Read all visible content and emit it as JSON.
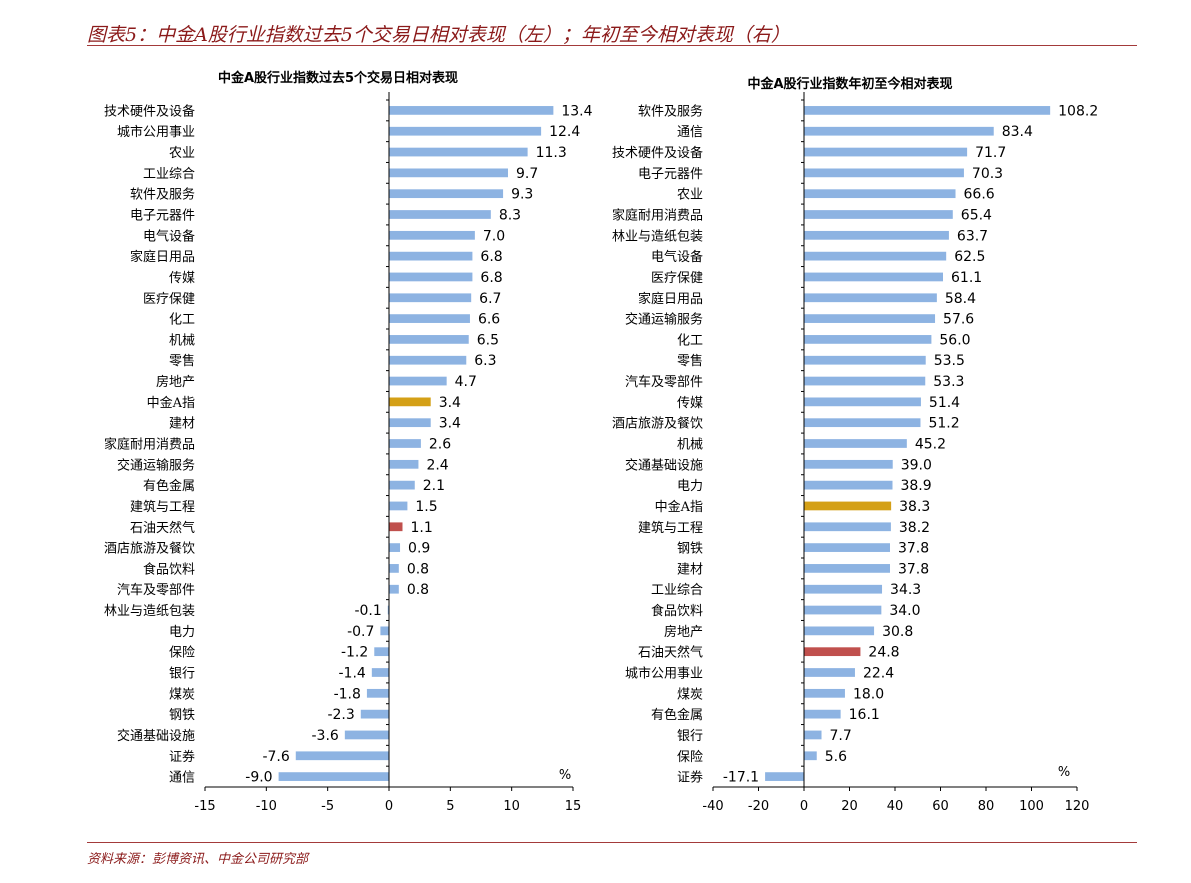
{
  "figure": {
    "title": "图表5：中金A股行业指数过去5个交易日相对表现（左）；年初至今相对表现（右）",
    "source": "资料来源：彭博资讯、中金公司研究部"
  },
  "colors": {
    "bar": "#8db3e2",
    "highlight_index": "#d4a017",
    "highlight_energy": "#c0504d",
    "axis": "#000000"
  },
  "chart_data": [
    {
      "type": "bar",
      "orientation": "horizontal",
      "title": "中金A股行业指数过去5个交易日相对表现",
      "unit": "%",
      "xlim": [
        -15,
        15
      ],
      "xticks": [
        -15,
        -10,
        -5,
        0,
        5,
        10,
        15
      ],
      "categories": [
        "技术硬件及设备",
        "城市公用事业",
        "农业",
        "工业综合",
        "软件及服务",
        "电子元器件",
        "电气设备",
        "家庭日用品",
        "传媒",
        "医疗保健",
        "化工",
        "机械",
        "零售",
        "房地产",
        "中金A指",
        "建材",
        "家庭耐用消费品",
        "交通运输服务",
        "有色金属",
        "建筑与工程",
        "石油天然气",
        "酒店旅游及餐饮",
        "食品饮料",
        "汽车及零部件",
        "林业与造纸包装",
        "电力",
        "保险",
        "银行",
        "煤炭",
        "钢铁",
        "交通基础设施",
        "证券",
        "通信"
      ],
      "values": [
        13.4,
        12.4,
        11.3,
        9.7,
        9.3,
        8.3,
        7.0,
        6.8,
        6.8,
        6.7,
        6.6,
        6.5,
        6.3,
        4.7,
        3.4,
        3.4,
        2.6,
        2.4,
        2.1,
        1.5,
        1.1,
        0.9,
        0.8,
        0.8,
        -0.1,
        -0.7,
        -1.2,
        -1.4,
        -1.8,
        -2.3,
        -3.6,
        -7.6,
        -9.0
      ],
      "labels": [
        "13.4",
        "12.4",
        "11.3",
        "9.7",
        "9.3",
        "8.3",
        "7.0",
        "6.8",
        "6.8",
        "6.7",
        "6.6",
        "6.5",
        "6.3",
        "4.7",
        "3.4",
        "3.4",
        "2.6",
        "2.4",
        "2.1",
        "1.5",
        "1.1",
        "0.9",
        "0.8",
        "0.8",
        "-0.1",
        "-0.7",
        "-1.2",
        "-1.4",
        "-1.8",
        "-2.3",
        "-3.6",
        "-7.6",
        "-9.0"
      ],
      "highlights": {
        "中金A指": "highlight_index",
        "石油天然气": "highlight_energy"
      }
    },
    {
      "type": "bar",
      "orientation": "horizontal",
      "title": "中金A股行业指数年初至今相对表现",
      "unit": "%",
      "xlim": [
        -40,
        120
      ],
      "xticks": [
        -40,
        -20,
        0,
        20,
        40,
        60,
        80,
        100,
        120
      ],
      "categories": [
        "软件及服务",
        "通信",
        "技术硬件及设备",
        "电子元器件",
        "农业",
        "家庭耐用消费品",
        "林业与造纸包装",
        "电气设备",
        "医疗保健",
        "家庭日用品",
        "交通运输服务",
        "化工",
        "零售",
        "汽车及零部件",
        "传媒",
        "酒店旅游及餐饮",
        "机械",
        "交通基础设施",
        "电力",
        "中金A指",
        "建筑与工程",
        "钢铁",
        "建材",
        "工业综合",
        "食品饮料",
        "房地产",
        "石油天然气",
        "城市公用事业",
        "煤炭",
        "有色金属",
        "银行",
        "保险",
        "证券"
      ],
      "values": [
        108.2,
        83.4,
        71.7,
        70.3,
        66.6,
        65.4,
        63.7,
        62.5,
        61.1,
        58.4,
        57.6,
        56.0,
        53.5,
        53.3,
        51.4,
        51.2,
        45.2,
        39.0,
        38.9,
        38.3,
        38.2,
        37.8,
        37.8,
        34.3,
        34.0,
        30.8,
        24.8,
        22.4,
        18.0,
        16.1,
        7.7,
        5.6,
        -17.1
      ],
      "labels": [
        "108.2",
        "83.4",
        "71.7",
        "70.3",
        "66.6",
        "65.4",
        "63.7",
        "62.5",
        "61.1",
        "58.4",
        "57.6",
        "56.0",
        "53.5",
        "53.3",
        "51.4",
        "51.2",
        "45.2",
        "39.0",
        "38.9",
        "38.3",
        "38.2",
        "37.8",
        "37.8",
        "34.3",
        "34.0",
        "30.8",
        "24.8",
        "22.4",
        "18.0",
        "16.1",
        "7.7",
        "5.6",
        "-17.1"
      ],
      "highlights": {
        "中金A指": "highlight_index",
        "石油天然气": "highlight_energy"
      }
    }
  ]
}
